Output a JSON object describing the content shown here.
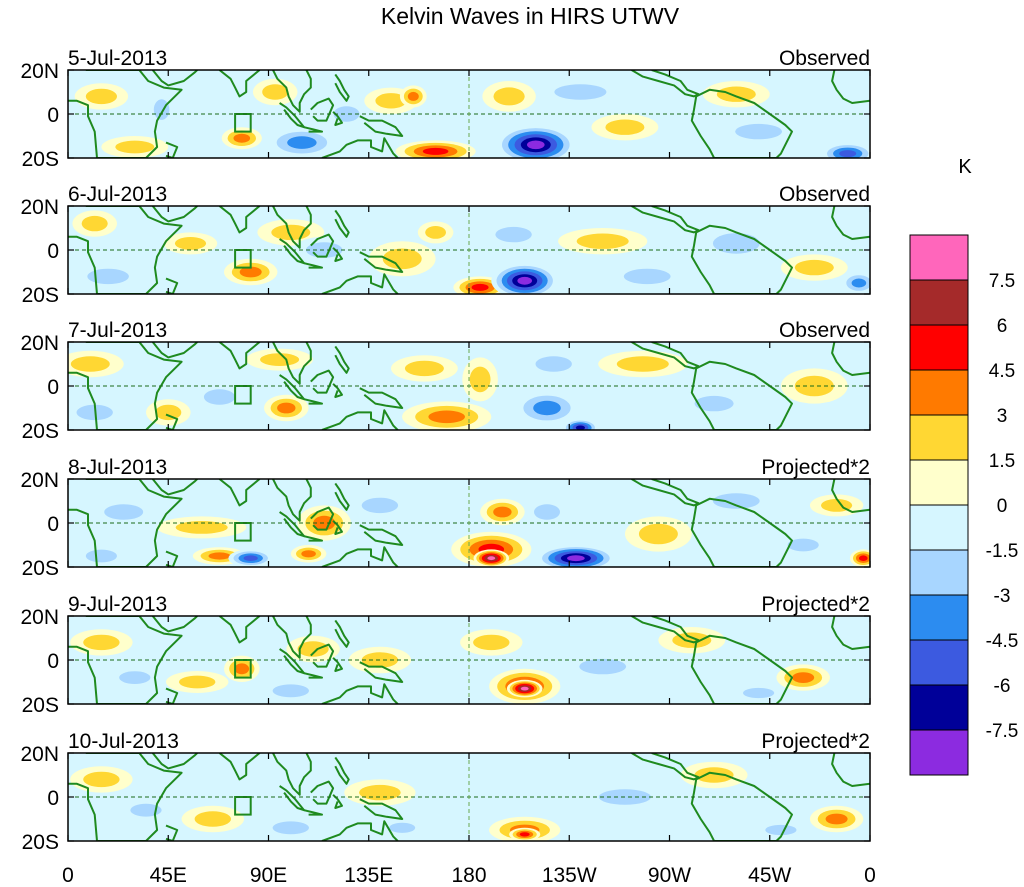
{
  "chart_data": {
    "type": "heatmap",
    "title": "Kelvin Waves in HIRS UTWV",
    "colorbar": {
      "unit": "K",
      "levels": [
        "7.5",
        "6",
        "4.5",
        "3",
        "1.5",
        "0",
        "-1.5",
        "-3",
        "-4.5",
        "-6",
        "-7.5"
      ],
      "colors": [
        "#ff66bb",
        "#a52a2a",
        "#ff0000",
        "#ff7a00",
        "#ffd733",
        "#ffffcc",
        "#d6f6ff",
        "#a8d6ff",
        "#2c8cf0",
        "#3c5ae0",
        "#000099",
        "#8c2be0"
      ]
    },
    "x_ticks": [
      "0",
      "45E",
      "90E",
      "135E",
      "180",
      "135W",
      "90W",
      "45W",
      "0"
    ],
    "y_ticks": [
      "20N",
      "0",
      "20S"
    ],
    "lon_range": [
      0,
      360
    ],
    "lat_range": [
      -20,
      20
    ],
    "panels": [
      {
        "date": "5-Jul-2013",
        "label": "Observed",
        "blobs": [
          {
            "lon": 15,
            "lat": 8,
            "rx": 12,
            "ry": 6,
            "v": 2
          },
          {
            "lon": 30,
            "lat": -15,
            "rx": 15,
            "ry": 5,
            "v": 2
          },
          {
            "lon": 42,
            "lat": 2,
            "rx": 6,
            "ry": 8,
            "v": -2
          },
          {
            "lon": 78,
            "lat": -11,
            "rx": 9,
            "ry": 5,
            "v": 3.5
          },
          {
            "lon": 93,
            "lat": 10,
            "rx": 10,
            "ry": 6,
            "v": 2
          },
          {
            "lon": 105,
            "lat": -13,
            "rx": 16,
            "ry": 7,
            "v": -3.5
          },
          {
            "lon": 125,
            "lat": 0,
            "rx": 10,
            "ry": 6,
            "v": -2
          },
          {
            "lon": 145,
            "lat": 6,
            "rx": 12,
            "ry": 6,
            "v": 2
          },
          {
            "lon": 165,
            "lat": -17,
            "rx": 18,
            "ry": 5,
            "v": 5
          },
          {
            "lon": 155,
            "lat": 8,
            "rx": 6,
            "ry": 5,
            "v": 4
          },
          {
            "lon": 198,
            "lat": 8,
            "rx": 12,
            "ry": 7,
            "v": 2
          },
          {
            "lon": 210,
            "lat": -14,
            "rx": 18,
            "ry": 9,
            "v": -8
          },
          {
            "lon": 250,
            "lat": -6,
            "rx": 15,
            "ry": 6,
            "v": 2
          },
          {
            "lon": 230,
            "lat": 10,
            "rx": 20,
            "ry": 6,
            "v": -2
          },
          {
            "lon": 300,
            "lat": 9,
            "rx": 15,
            "ry": 6,
            "v": 2
          },
          {
            "lon": 310,
            "lat": -8,
            "rx": 18,
            "ry": 6,
            "v": -2
          },
          {
            "lon": 350,
            "lat": -18,
            "rx": 12,
            "ry": 5,
            "v": -6
          }
        ]
      },
      {
        "date": "6-Jul-2013",
        "label": "Observed",
        "blobs": [
          {
            "lon": 12,
            "lat": 12,
            "rx": 10,
            "ry": 6,
            "v": 2
          },
          {
            "lon": 18,
            "lat": -12,
            "rx": 16,
            "ry": 6,
            "v": -3
          },
          {
            "lon": 55,
            "lat": 3,
            "rx": 12,
            "ry": 5,
            "v": 2
          },
          {
            "lon": 82,
            "lat": -10,
            "rx": 12,
            "ry": 6,
            "v": 4
          },
          {
            "lon": 100,
            "lat": 8,
            "rx": 15,
            "ry": 6,
            "v": 2
          },
          {
            "lon": 115,
            "lat": 0,
            "rx": 14,
            "ry": 6,
            "v": -3
          },
          {
            "lon": 150,
            "lat": -4,
            "rx": 15,
            "ry": 8,
            "v": 2
          },
          {
            "lon": 185,
            "lat": -17,
            "rx": 12,
            "ry": 5,
            "v": 6
          },
          {
            "lon": 165,
            "lat": 8,
            "rx": 8,
            "ry": 5,
            "v": 2
          },
          {
            "lon": 205,
            "lat": -14,
            "rx": 15,
            "ry": 8,
            "v": -8
          },
          {
            "lon": 200,
            "lat": 7,
            "rx": 14,
            "ry": 6,
            "v": -3
          },
          {
            "lon": 240,
            "lat": 4,
            "rx": 20,
            "ry": 6,
            "v": 2
          },
          {
            "lon": 260,
            "lat": -12,
            "rx": 18,
            "ry": 6,
            "v": -2
          },
          {
            "lon": 300,
            "lat": 3,
            "rx": 18,
            "ry": 8,
            "v": -2
          },
          {
            "lon": 335,
            "lat": -8,
            "rx": 15,
            "ry": 6,
            "v": 2
          },
          {
            "lon": 355,
            "lat": -15,
            "rx": 8,
            "ry": 5,
            "v": -4
          }
        ]
      },
      {
        "date": "7-Jul-2013",
        "label": "Observed",
        "blobs": [
          {
            "lon": 10,
            "lat": 10,
            "rx": 15,
            "ry": 6,
            "v": 2
          },
          {
            "lon": 12,
            "lat": -12,
            "rx": 14,
            "ry": 6,
            "v": -3
          },
          {
            "lon": 45,
            "lat": -12,
            "rx": 10,
            "ry": 6,
            "v": 2
          },
          {
            "lon": 68,
            "lat": -5,
            "rx": 12,
            "ry": 6,
            "v": -2
          },
          {
            "lon": 98,
            "lat": -10,
            "rx": 10,
            "ry": 6,
            "v": 3.5
          },
          {
            "lon": 95,
            "lat": 12,
            "rx": 15,
            "ry": 5,
            "v": 2
          },
          {
            "lon": 170,
            "lat": -14,
            "rx": 20,
            "ry": 7,
            "v": 4.5
          },
          {
            "lon": 160,
            "lat": 8,
            "rx": 15,
            "ry": 6,
            "v": 2
          },
          {
            "lon": 185,
            "lat": 3,
            "rx": 8,
            "ry": 10,
            "v": 2
          },
          {
            "lon": 215,
            "lat": -10,
            "rx": 15,
            "ry": 8,
            "v": -4
          },
          {
            "lon": 230,
            "lat": -19,
            "rx": 8,
            "ry": 4,
            "v": -7
          },
          {
            "lon": 218,
            "lat": 10,
            "rx": 14,
            "ry": 6,
            "v": -2
          },
          {
            "lon": 258,
            "lat": 10,
            "rx": 20,
            "ry": 6,
            "v": 2
          },
          {
            "lon": 290,
            "lat": -8,
            "rx": 15,
            "ry": 6,
            "v": -2
          },
          {
            "lon": 335,
            "lat": 0,
            "rx": 15,
            "ry": 8,
            "v": 2
          }
        ]
      },
      {
        "date": "8-Jul-2013",
        "label": "Projected*2",
        "blobs": [
          {
            "lon": 25,
            "lat": 5,
            "rx": 15,
            "ry": 6,
            "v": -2
          },
          {
            "lon": 15,
            "lat": -15,
            "rx": 12,
            "ry": 5,
            "v": -3
          },
          {
            "lon": 60,
            "lat": -2,
            "rx": 20,
            "ry": 5,
            "v": 2
          },
          {
            "lon": 68,
            "lat": -15,
            "rx": 12,
            "ry": 4,
            "v": 3.5
          },
          {
            "lon": 82,
            "lat": -16,
            "rx": 10,
            "ry": 4,
            "v": -6
          },
          {
            "lon": 115,
            "lat": 0,
            "rx": 12,
            "ry": 8,
            "v": 3.5
          },
          {
            "lon": 108,
            "lat": -14,
            "rx": 8,
            "ry": 4,
            "v": 4
          },
          {
            "lon": 140,
            "lat": 8,
            "rx": 14,
            "ry": 6,
            "v": -2
          },
          {
            "lon": 190,
            "lat": -12,
            "rx": 18,
            "ry": 8,
            "v": 6
          },
          {
            "lon": 190,
            "lat": -16,
            "rx": 8,
            "ry": 4,
            "v": 8
          },
          {
            "lon": 195,
            "lat": 5,
            "rx": 10,
            "ry": 6,
            "v": 4
          },
          {
            "lon": 228,
            "lat": -16,
            "rx": 18,
            "ry": 6,
            "v": -8
          },
          {
            "lon": 215,
            "lat": 5,
            "rx": 10,
            "ry": 6,
            "v": -3
          },
          {
            "lon": 265,
            "lat": -5,
            "rx": 15,
            "ry": 8,
            "v": 2
          },
          {
            "lon": 300,
            "lat": 10,
            "rx": 18,
            "ry": 6,
            "v": -2
          },
          {
            "lon": 345,
            "lat": 8,
            "rx": 12,
            "ry": 5,
            "v": 2
          },
          {
            "lon": 330,
            "lat": -10,
            "rx": 12,
            "ry": 5,
            "v": -2
          },
          {
            "lon": 357,
            "lat": -16,
            "rx": 6,
            "ry": 4,
            "v": 5
          }
        ]
      },
      {
        "date": "9-Jul-2013",
        "label": "Projected*2",
        "blobs": [
          {
            "lon": 15,
            "lat": 8,
            "rx": 14,
            "ry": 6,
            "v": 2
          },
          {
            "lon": 30,
            "lat": -8,
            "rx": 12,
            "ry": 5,
            "v": -2
          },
          {
            "lon": 58,
            "lat": -10,
            "rx": 14,
            "ry": 5,
            "v": 2
          },
          {
            "lon": 78,
            "lat": -4,
            "rx": 8,
            "ry": 6,
            "v": 3.5
          },
          {
            "lon": 100,
            "lat": -14,
            "rx": 14,
            "ry": 5,
            "v": -3
          },
          {
            "lon": 110,
            "lat": 5,
            "rx": 12,
            "ry": 6,
            "v": 2
          },
          {
            "lon": 140,
            "lat": 0,
            "rx": 14,
            "ry": 6,
            "v": 2
          },
          {
            "lon": 190,
            "lat": 8,
            "rx": 14,
            "ry": 6,
            "v": 2
          },
          {
            "lon": 205,
            "lat": -12,
            "rx": 16,
            "ry": 8,
            "v": 5
          },
          {
            "lon": 205,
            "lat": -13,
            "rx": 8,
            "ry": 4,
            "v": 8
          },
          {
            "lon": 240,
            "lat": -3,
            "rx": 18,
            "ry": 6,
            "v": -2
          },
          {
            "lon": 280,
            "lat": 9,
            "rx": 15,
            "ry": 6,
            "v": 2
          },
          {
            "lon": 330,
            "lat": -8,
            "rx": 12,
            "ry": 6,
            "v": 3.5
          },
          {
            "lon": 310,
            "lat": -15,
            "rx": 12,
            "ry": 4,
            "v": -2
          }
        ]
      },
      {
        "date": "10-Jul-2013",
        "label": "Projected*2",
        "blobs": [
          {
            "lon": 15,
            "lat": 8,
            "rx": 14,
            "ry": 6,
            "v": 2
          },
          {
            "lon": 35,
            "lat": -6,
            "rx": 12,
            "ry": 5,
            "v": -2
          },
          {
            "lon": 65,
            "lat": -10,
            "rx": 14,
            "ry": 6,
            "v": 2
          },
          {
            "lon": 100,
            "lat": -14,
            "rx": 14,
            "ry": 5,
            "v": -2
          },
          {
            "lon": 140,
            "lat": 2,
            "rx": 16,
            "ry": 6,
            "v": 2
          },
          {
            "lon": 150,
            "lat": -14,
            "rx": 10,
            "ry": 4,
            "v": -2
          },
          {
            "lon": 205,
            "lat": -15,
            "rx": 16,
            "ry": 6,
            "v": 4
          },
          {
            "lon": 205,
            "lat": -17,
            "rx": 7,
            "ry": 3,
            "v": 6
          },
          {
            "lon": 250,
            "lat": 0,
            "rx": 20,
            "ry": 6,
            "v": -2
          },
          {
            "lon": 290,
            "lat": 10,
            "rx": 15,
            "ry": 6,
            "v": 2
          },
          {
            "lon": 345,
            "lat": -10,
            "rx": 12,
            "ry": 6,
            "v": 3.5
          },
          {
            "lon": 320,
            "lat": -15,
            "rx": 12,
            "ry": 4,
            "v": -2
          }
        ]
      }
    ]
  }
}
